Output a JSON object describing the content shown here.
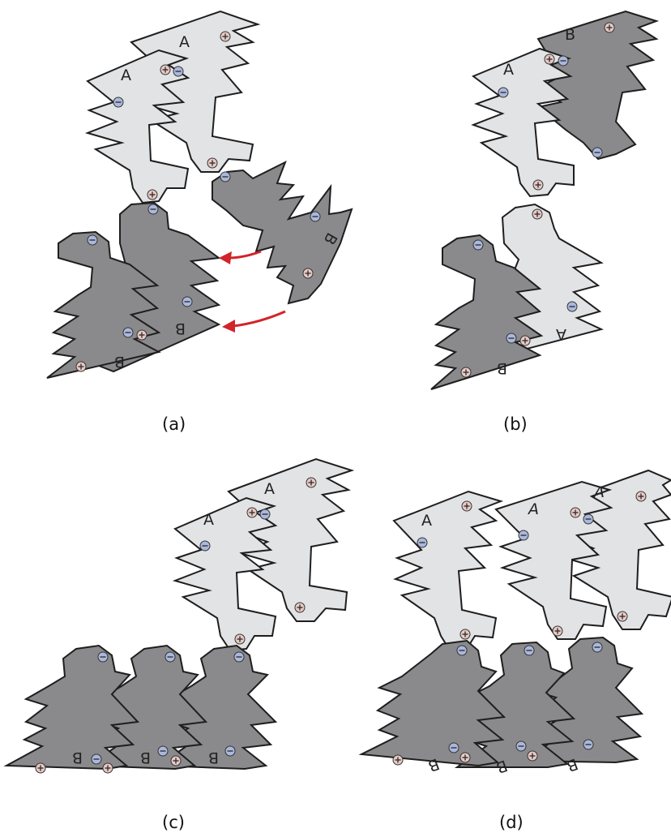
{
  "colors": {
    "piece_a": "#e2e3e5",
    "piece_b": "#8a8a8c",
    "outline": "#1e1e1e",
    "plus_fill": "#e8c9c4",
    "minus_fill": "#aab8dc",
    "arrow": "#d2232a"
  },
  "piece_labels": {
    "a": "A",
    "b": "B"
  },
  "sign_glyphs": {
    "plus": "⊕",
    "minus": "⊝"
  },
  "panels": [
    {
      "id": "a",
      "caption": "(a)"
    },
    {
      "id": "b",
      "caption": "(b)"
    },
    {
      "id": "c",
      "caption": "(c)"
    },
    {
      "id": "d",
      "caption": "(d)"
    }
  ]
}
